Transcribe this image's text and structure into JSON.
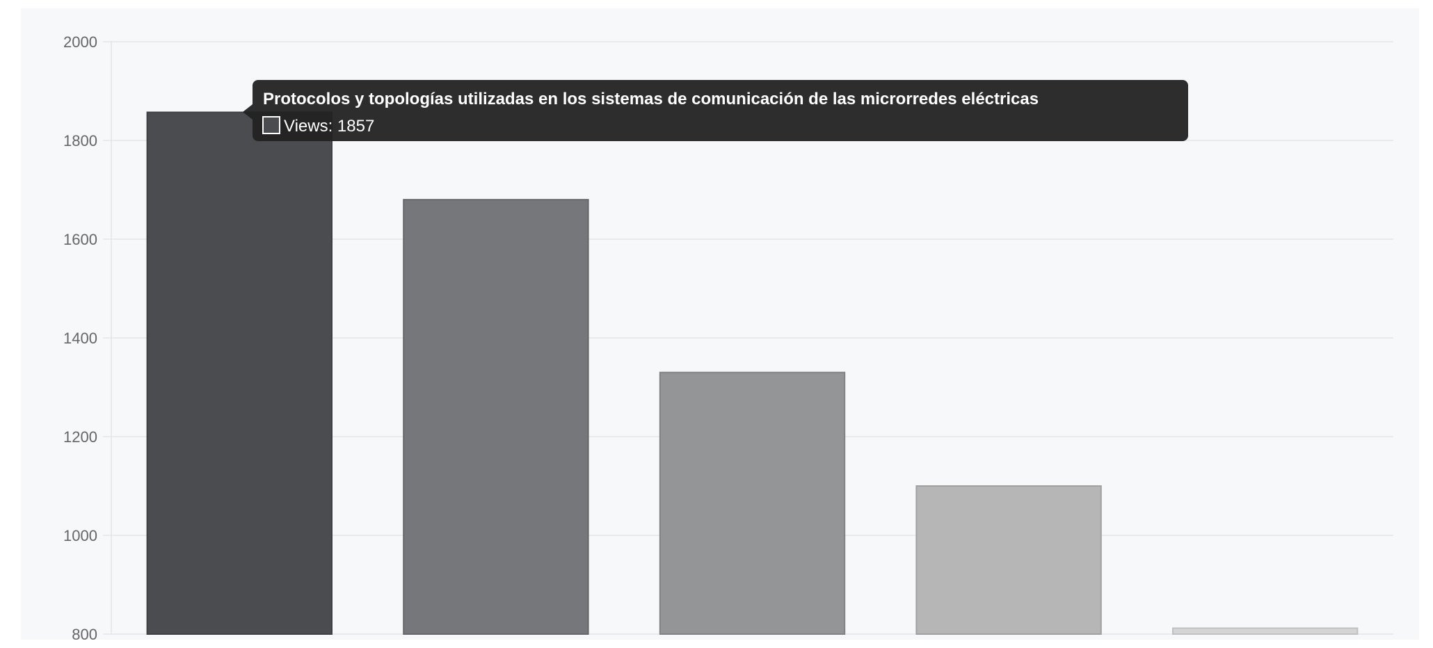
{
  "chart_data": {
    "type": "bar",
    "title": "",
    "xlabel": "",
    "ylabel": "",
    "categories": [
      "",
      "",
      "",
      "",
      ""
    ],
    "series": [
      {
        "values": [
          1857,
          1680,
          1330,
          1100,
          812
        ]
      }
    ],
    "ylim": [
      800,
      2000
    ],
    "yticks": [
      "2000",
      "1800",
      "1600",
      "1400",
      "1200",
      "1000",
      "800"
    ],
    "grid": true,
    "legend": "none",
    "bar_colors": [
      "#4a4c50",
      "#76777a",
      "#939597",
      "#b6b6b7",
      "#d5d5d6"
    ],
    "bar_border_colors": [
      "#3d3f42",
      "#66676a",
      "#808283",
      "#a0a0a1",
      "#c0c0c1"
    ],
    "plot_background": "#f7f8fa",
    "grid_color": "#e3e5e8"
  },
  "tooltip": {
    "title": "Protocolos y topologías utilizadas en los sistemas de comunicación de las microrredes eléctricas",
    "label": "Views: 1857",
    "swatch_color": "#4a4c50",
    "background": "#222222"
  }
}
